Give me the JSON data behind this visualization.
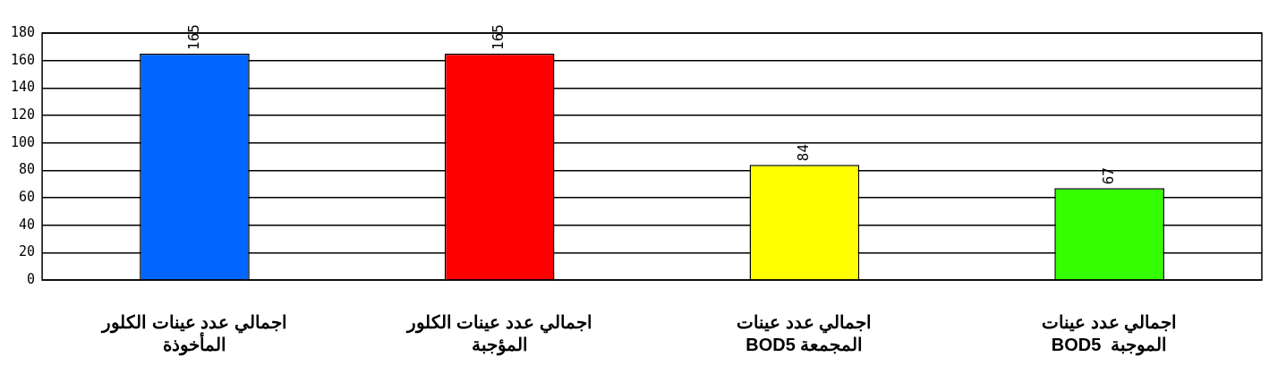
{
  "chart_data": {
    "type": "bar",
    "categories": [
      "اجمالي عدد عينات الكلور\nالمأخوذة",
      "اجمالي عدد عينات الكلور\nالمؤجبة",
      "اجمالي عدد عينات\nBOD5 المجمعة",
      "اجمالي عدد عينات\nBOD5  الموجبة"
    ],
    "values": [
      165,
      165,
      84,
      67
    ],
    "colors": [
      "#0066ff",
      "#ff0000",
      "#ffff00",
      "#33ff00"
    ],
    "ylim": [
      0,
      180
    ],
    "yticks": [
      0,
      20,
      40,
      60,
      80,
      100,
      120,
      140,
      160,
      180
    ],
    "grid": "y",
    "data_labels": true
  }
}
